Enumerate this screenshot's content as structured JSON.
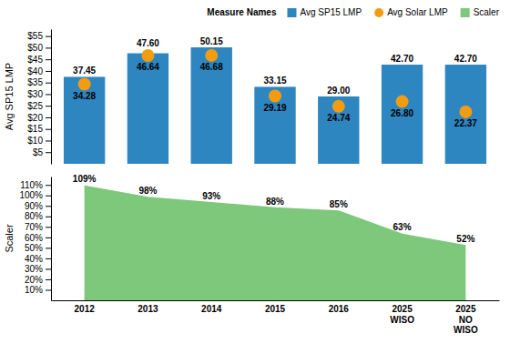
{
  "chart_data": [
    {
      "type": "bar",
      "y_label": "Avg SP15 LMP",
      "categories": [
        "2012",
        "2013",
        "2014",
        "2015",
        "2016",
        "2025\nWISO",
        "2025\nNO\nWISO"
      ],
      "series": [
        {
          "name": "Avg SP15 LMP",
          "type": "bar",
          "color": "#2E86C1",
          "values": [
            37.45,
            47.6,
            50.15,
            33.15,
            29.0,
            42.7,
            42.7
          ],
          "value_labels": [
            "37.45",
            "47.60",
            "50.15",
            "33.15",
            "29.00",
            "42.70",
            "42.70"
          ]
        },
        {
          "name": "Avg Solar LMP",
          "type": "scatter",
          "marker": "circle",
          "color": "#F39C12",
          "values": [
            34.28,
            46.64,
            46.68,
            29.19,
            24.74,
            26.8,
            22.37
          ],
          "value_labels": [
            "34.28",
            "46.64",
            "46.68",
            "29.19",
            "24.74",
            "26.80",
            "22.37"
          ]
        }
      ],
      "ylim": [
        0,
        58
      ],
      "yticks": [
        {
          "value": 5,
          "label": "$5"
        },
        {
          "value": 10,
          "label": "$10"
        },
        {
          "value": 15,
          "label": "$15"
        },
        {
          "value": 20,
          "label": "$20"
        },
        {
          "value": 25,
          "label": "$25"
        },
        {
          "value": 30,
          "label": "$30"
        },
        {
          "value": 35,
          "label": "$35"
        },
        {
          "value": 40,
          "label": "$40"
        },
        {
          "value": 45,
          "label": "$45"
        },
        {
          "value": 50,
          "label": "$50"
        },
        {
          "value": 55,
          "label": "$55"
        }
      ],
      "grid": false,
      "legend": "top",
      "legend_title": "Measure Names",
      "tick_labels": "y",
      "data_labels": true
    },
    {
      "type": "area",
      "y_label": "Scaler",
      "categories": [
        "2012",
        "2013",
        "2014",
        "2015",
        "2016",
        "2025\nWISO",
        "2025\nNO\nWISO"
      ],
      "series": [
        {
          "name": "Scaler",
          "type": "area",
          "color": "#7DC87B",
          "values": [
            1.09,
            0.98,
            0.93,
            0.88,
            0.85,
            0.63,
            0.52
          ],
          "value_labels": [
            "109%",
            "98%",
            "93%",
            "88%",
            "85%",
            "63%",
            "52%"
          ]
        }
      ],
      "ylim": [
        0,
        1.18
      ],
      "yticks": [
        {
          "value": 0.1,
          "label": "10%"
        },
        {
          "value": 0.2,
          "label": "20%"
        },
        {
          "value": 0.3,
          "label": "30%"
        },
        {
          "value": 0.4,
          "label": "40%"
        },
        {
          "value": 0.5,
          "label": "50%"
        },
        {
          "value": 0.6,
          "label": "60%"
        },
        {
          "value": 0.7,
          "label": "70%"
        },
        {
          "value": 0.8,
          "label": "80%"
        },
        {
          "value": 0.9,
          "label": "90%"
        },
        {
          "value": 1.0,
          "label": "100%"
        },
        {
          "value": 1.1,
          "label": "110%"
        }
      ],
      "grid": false,
      "data_labels": true
    }
  ]
}
